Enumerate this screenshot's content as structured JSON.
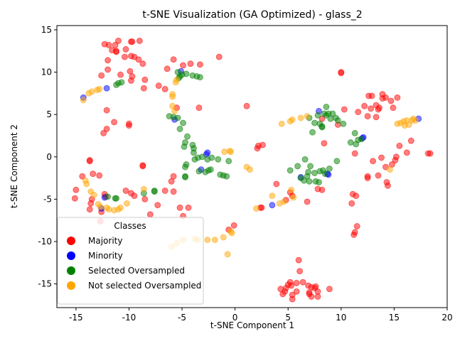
{
  "chart_data": {
    "type": "scatter",
    "title": "t-SNE Visualization (GA Optimized) - glass_2",
    "xlabel": "t-SNE Component 1",
    "ylabel": "t-SNE Component 2",
    "xlim": [
      -16.8,
      20.0
    ],
    "ylim": [
      -17.8,
      15.5
    ],
    "xticks": [
      -15,
      -10,
      -5,
      0,
      5,
      10,
      15,
      20
    ],
    "yticks": [
      -15,
      -10,
      -5,
      0,
      5,
      10,
      15
    ],
    "grid": false,
    "legend": {
      "title": "Classes",
      "placement": "lower-left",
      "entries": [
        "Majority",
        "Minority",
        "Selected Oversampled",
        "Not selected Oversampled"
      ]
    },
    "series": [
      {
        "name": "Majority",
        "color": "#ff0000",
        "points": [
          [
            -11.9,
            13.2
          ],
          [
            -11.3,
            13.2
          ],
          [
            -11.0,
            13.7
          ],
          [
            -11.2,
            12.5
          ],
          [
            -11.6,
            12.6
          ],
          [
            -10.3,
            12.7
          ],
          [
            -10.4,
            11.8
          ],
          [
            -9.7,
            13.6
          ],
          [
            -9.8,
            13.6
          ],
          [
            -9.0,
            13.7
          ],
          [
            -9.5,
            11.8
          ],
          [
            -9.1,
            11.5
          ],
          [
            -8.7,
            11.0
          ],
          [
            -9.8,
            11.9
          ],
          [
            -12.0,
            11.4
          ],
          [
            -12.3,
            13.3
          ],
          [
            -11.2,
            12.4
          ],
          [
            -6.4,
            10.4
          ],
          [
            -5.8,
            11.5
          ],
          [
            -4.9,
            10.8
          ],
          [
            -4.2,
            11.0
          ],
          [
            -3.3,
            10.9
          ],
          [
            -1.5,
            11.8
          ],
          [
            -12.6,
            9.6
          ],
          [
            -12.0,
            10.3
          ],
          [
            -10.8,
            9.7
          ],
          [
            -9.9,
            10.1
          ],
          [
            -9.7,
            9.5
          ],
          [
            -9.8,
            9.0
          ],
          [
            -8.5,
            9.1
          ],
          [
            -8.6,
            8.1
          ],
          [
            -7.2,
            8.4
          ],
          [
            -6.6,
            8.0
          ],
          [
            -5.5,
            5.8
          ],
          [
            -3.4,
            5.8
          ],
          [
            -12.1,
            5.5
          ],
          [
            -11.4,
            4.1
          ],
          [
            -10.0,
            3.9
          ],
          [
            -10.0,
            3.7
          ],
          [
            -12.1,
            3.3
          ],
          [
            -12.4,
            2.8
          ],
          [
            1.1,
            6.0
          ],
          [
            -14.4,
            -2.3
          ],
          [
            -13.4,
            -2.0
          ],
          [
            -12.8,
            -2.2
          ],
          [
            -13.7,
            -0.4
          ],
          [
            -13.7,
            -0.5
          ],
          [
            -15.0,
            -3.9
          ],
          [
            -15.1,
            -4.9
          ],
          [
            -13.5,
            -5.0
          ],
          [
            -13.6,
            -5.5
          ],
          [
            -12.3,
            -4.4
          ],
          [
            -12.2,
            -4.7
          ],
          [
            -13.7,
            -6.2
          ],
          [
            -12.6,
            -6.5
          ],
          [
            -12.7,
            -7.6
          ],
          [
            -10.3,
            -4.0
          ],
          [
            -9.8,
            -4.3
          ],
          [
            -9.5,
            -4.6
          ],
          [
            -8.7,
            -1.0
          ],
          [
            -8.7,
            -1.1
          ],
          [
            -8.5,
            -5.0
          ],
          [
            -7.3,
            -5.7
          ],
          [
            -8.0,
            -6.8
          ],
          [
            -6.6,
            -4.0
          ],
          [
            -6.0,
            -2.9
          ],
          [
            -5.8,
            -2.3
          ],
          [
            -5.8,
            -4.1
          ],
          [
            -5.2,
            -6.0
          ],
          [
            -4.4,
            -6.0
          ],
          [
            -4.9,
            -7.0
          ],
          [
            -0.1,
            -8.1
          ],
          [
            -0.6,
            -8.6
          ],
          [
            2.1,
            1.0
          ],
          [
            2.2,
            1.3
          ],
          [
            2.6,
            1.4
          ],
          [
            2.4,
            -6.0
          ],
          [
            2.5,
            -6.0
          ],
          [
            3.9,
            -3.2
          ],
          [
            4.8,
            -5.1
          ],
          [
            5.4,
            -4.6
          ],
          [
            5.2,
            -4.2
          ],
          [
            6.8,
            -5.3
          ],
          [
            8.2,
            -3.9
          ],
          [
            7.8,
            -3.8
          ],
          [
            8.4,
            1.6
          ],
          [
            8.2,
            4.5
          ],
          [
            9.7,
            3.8
          ],
          [
            10.0,
            10.0
          ],
          [
            10.0,
            9.9
          ],
          [
            10.3,
            5.6
          ],
          [
            11.1,
            -4.4
          ],
          [
            11.4,
            -4.6
          ],
          [
            11.0,
            -5.5
          ],
          [
            11.3,
            -8.9
          ],
          [
            11.2,
            -9.2
          ],
          [
            11.5,
            -8.2
          ],
          [
            11.3,
            0.4
          ],
          [
            11.6,
            5.3
          ],
          [
            12.2,
            6.0
          ],
          [
            12.5,
            4.8
          ],
          [
            12.6,
            7.2
          ],
          [
            12.9,
            7.2
          ],
          [
            12.8,
            5.7
          ],
          [
            13.3,
            6.1
          ],
          [
            13.5,
            5.6
          ],
          [
            13.6,
            5.8
          ],
          [
            13.9,
            7.4
          ],
          [
            13.9,
            6.9
          ],
          [
            14.2,
            7.0
          ],
          [
            13.3,
            4.7
          ],
          [
            14.7,
            6.6
          ],
          [
            14.9,
            5.8
          ],
          [
            15.3,
            7.0
          ],
          [
            12.5,
            -2.3
          ],
          [
            12.5,
            -2.5
          ],
          [
            13.5,
            -2.2
          ],
          [
            13.0,
            -0.5
          ],
          [
            13.8,
            -0.1
          ],
          [
            14.3,
            -3.0
          ],
          [
            14.4,
            -3.4
          ],
          [
            14.2,
            -1.2
          ],
          [
            14.8,
            -0.9
          ],
          [
            15.2,
            0.0
          ],
          [
            15.1,
            -0.4
          ],
          [
            15.5,
            1.3
          ],
          [
            16.2,
            0.5
          ],
          [
            16.6,
            1.9
          ],
          [
            18.2,
            0.4
          ],
          [
            18.4,
            0.4
          ],
          [
            4.3,
            -15.6
          ],
          [
            4.7,
            -15.9
          ],
          [
            4.5,
            -16.2
          ],
          [
            4.8,
            -15.5
          ],
          [
            5.2,
            -14.8
          ],
          [
            5.3,
            -15.2
          ],
          [
            5.0,
            -15.1
          ],
          [
            5.4,
            -16.3
          ],
          [
            5.4,
            -16.8
          ],
          [
            5.8,
            -15.9
          ],
          [
            5.8,
            -14.9
          ],
          [
            6.0,
            -12.2
          ],
          [
            6.1,
            -13.5
          ],
          [
            6.4,
            -14.8
          ],
          [
            6.9,
            -15.2
          ],
          [
            7.0,
            -16.0
          ],
          [
            7.0,
            -16.2
          ],
          [
            7.2,
            -15.4
          ],
          [
            7.2,
            -16.5
          ],
          [
            7.5,
            -15.5
          ],
          [
            7.6,
            -15.3
          ],
          [
            7.8,
            -15.9
          ],
          [
            7.8,
            -16.5
          ],
          [
            8.9,
            -15.6
          ]
        ]
      },
      {
        "name": "Minority",
        "color": "#0000ff",
        "points": [
          [
            -14.3,
            7.0
          ],
          [
            -12.1,
            8.1
          ],
          [
            -5.7,
            4.4
          ],
          [
            -5.1,
            10.1
          ],
          [
            -2.7,
            0.3
          ],
          [
            -2.6,
            0.5
          ],
          [
            -3.2,
            -1.5
          ],
          [
            -12.3,
            -4.8
          ],
          [
            -12.6,
            -6.1
          ],
          [
            3.5,
            -5.7
          ],
          [
            6.2,
            -2.4
          ],
          [
            7.9,
            5.4
          ],
          [
            8.7,
            -2.0
          ],
          [
            8.8,
            -2.1
          ],
          [
            12.0,
            2.2
          ],
          [
            12.1,
            2.3
          ],
          [
            17.3,
            4.5
          ]
        ]
      },
      {
        "name": "Selected Oversampled",
        "color": "#008000",
        "points": [
          [
            -11.2,
            8.5
          ],
          [
            -11.0,
            8.7
          ],
          [
            -10.7,
            8.8
          ],
          [
            -5.3,
            9.3
          ],
          [
            -5.2,
            9.5
          ],
          [
            -5.0,
            9.7
          ],
          [
            -4.6,
            9.8
          ],
          [
            -4.0,
            9.6
          ],
          [
            -3.6,
            9.5
          ],
          [
            -3.3,
            9.4
          ],
          [
            -5.4,
            10.0
          ],
          [
            -6.2,
            4.8
          ],
          [
            -5.8,
            4.7
          ],
          [
            -5.4,
            4.6
          ],
          [
            -4.9,
            4.0
          ],
          [
            -5.2,
            3.3
          ],
          [
            -4.5,
            2.4
          ],
          [
            -4.7,
            1.7
          ],
          [
            -4.8,
            1.2
          ],
          [
            -4.0,
            1.4
          ],
          [
            -3.9,
            1.0
          ],
          [
            -3.9,
            0.5
          ],
          [
            -3.5,
            -0.1
          ],
          [
            -3.1,
            0.0
          ],
          [
            -3.8,
            -0.3
          ],
          [
            -2.6,
            -0.3
          ],
          [
            -2.2,
            -0.1
          ],
          [
            -1.6,
            -0.3
          ],
          [
            -0.6,
            -0.5
          ],
          [
            -4.6,
            -0.9
          ],
          [
            -4.7,
            -1.2
          ],
          [
            -3.4,
            -1.7
          ],
          [
            -2.8,
            -1.8
          ],
          [
            -2.5,
            -1.6
          ],
          [
            -2.3,
            -1.5
          ],
          [
            -4.7,
            -2.3
          ],
          [
            -4.7,
            -2.4
          ],
          [
            -1.4,
            -2.1
          ],
          [
            -1.1,
            -2.2
          ],
          [
            -0.8,
            -2.3
          ],
          [
            -8.6,
            -4.3
          ],
          [
            -7.6,
            -4.0
          ],
          [
            -7.6,
            -4.1
          ],
          [
            -12.0,
            -4.7
          ],
          [
            -11.3,
            -4.9
          ],
          [
            -11.2,
            -4.9
          ],
          [
            5.2,
            -1.6
          ],
          [
            5.9,
            -1.1
          ],
          [
            6.2,
            -2.5
          ],
          [
            6.5,
            -2.8
          ],
          [
            6.6,
            -0.3
          ],
          [
            6.9,
            -1.8
          ],
          [
            6.8,
            -2.3
          ],
          [
            7.0,
            -2.9
          ],
          [
            7.1,
            -1.1
          ],
          [
            7.5,
            -1.9
          ],
          [
            7.6,
            -2.9
          ],
          [
            7.9,
            -3.0
          ],
          [
            8.0,
            -1.7
          ],
          [
            8.3,
            -1.6
          ],
          [
            8.5,
            -2.0
          ],
          [
            8.9,
            -1.4
          ],
          [
            9.6,
            -0.5
          ],
          [
            7.0,
            4.6
          ],
          [
            7.3,
            2.9
          ],
          [
            7.5,
            4.0
          ],
          [
            7.8,
            4.9
          ],
          [
            8.0,
            3.9
          ],
          [
            8.2,
            3.6
          ],
          [
            8.2,
            3.5
          ],
          [
            8.4,
            5.1
          ],
          [
            8.6,
            5.9
          ],
          [
            8.6,
            4.9
          ],
          [
            8.8,
            5.1
          ],
          [
            9.0,
            4.5
          ],
          [
            9.2,
            5.1
          ],
          [
            9.5,
            4.6
          ],
          [
            9.7,
            4.3
          ],
          [
            10.2,
            3.9
          ],
          [
            10.9,
            1.7
          ],
          [
            11.3,
            2.8
          ],
          [
            11.4,
            1.5
          ],
          [
            11.6,
            2.0
          ],
          [
            11.9,
            2.1
          ]
        ]
      },
      {
        "name": "Not selected Oversampled",
        "color": "#ffa500",
        "points": [
          [
            -14.3,
            6.7
          ],
          [
            -13.8,
            7.5
          ],
          [
            -13.5,
            7.7
          ],
          [
            -13.0,
            7.9
          ],
          [
            -12.8,
            8.0
          ],
          [
            -5.9,
            6.0
          ],
          [
            -5.9,
            7.4
          ],
          [
            -5.9,
            7.1
          ],
          [
            -5.7,
            5.4
          ],
          [
            -5.5,
            9.1
          ],
          [
            -5.6,
            8.8
          ],
          [
            -14.1,
            -2.8
          ],
          [
            -14.0,
            -3.2
          ],
          [
            -13.6,
            -4.1
          ],
          [
            -13.3,
            -4.5
          ],
          [
            -12.9,
            -5.6
          ],
          [
            -12.7,
            -5.9
          ],
          [
            -12.1,
            -6.0
          ],
          [
            -11.9,
            -6.2
          ],
          [
            -11.4,
            -6.3
          ],
          [
            -11.0,
            -6.2
          ],
          [
            -10.8,
            -6.0
          ],
          [
            -10.2,
            -5.5
          ],
          [
            -8.6,
            -3.8
          ],
          [
            -6.0,
            -10.6
          ],
          [
            -5.5,
            -10.2
          ],
          [
            -4.9,
            -9.8
          ],
          [
            -3.8,
            -9.7
          ],
          [
            -3.5,
            -9.8
          ],
          [
            -2.6,
            -9.8
          ],
          [
            -1.9,
            -9.8
          ],
          [
            -1.1,
            -9.5
          ],
          [
            -0.7,
            -11.5
          ],
          [
            -0.4,
            -8.8
          ],
          [
            -0.3,
            -9.0
          ],
          [
            -1.0,
            0.6
          ],
          [
            -0.5,
            0.7
          ],
          [
            -0.4,
            0.6
          ],
          [
            1.1,
            -1.2
          ],
          [
            1.4,
            -1.5
          ],
          [
            2.0,
            -6.1
          ],
          [
            3.5,
            -4.6
          ],
          [
            4.2,
            -5.5
          ],
          [
            4.6,
            -5.3
          ],
          [
            4.4,
            3.9
          ],
          [
            5.2,
            4.2
          ],
          [
            5.4,
            4.4
          ],
          [
            5.3,
            -3.9
          ],
          [
            5.5,
            -4.8
          ],
          [
            6.2,
            4.6
          ],
          [
            6.8,
            4.8
          ],
          [
            14.6,
            -1.5
          ],
          [
            15.3,
            3.9
          ],
          [
            15.6,
            4.0
          ],
          [
            15.9,
            4.2
          ],
          [
            16.0,
            3.7
          ],
          [
            16.2,
            4.3
          ],
          [
            16.4,
            3.8
          ],
          [
            16.7,
            4.3
          ],
          [
            16.8,
            4.5
          ],
          [
            17.0,
            4.3
          ]
        ]
      }
    ]
  }
}
